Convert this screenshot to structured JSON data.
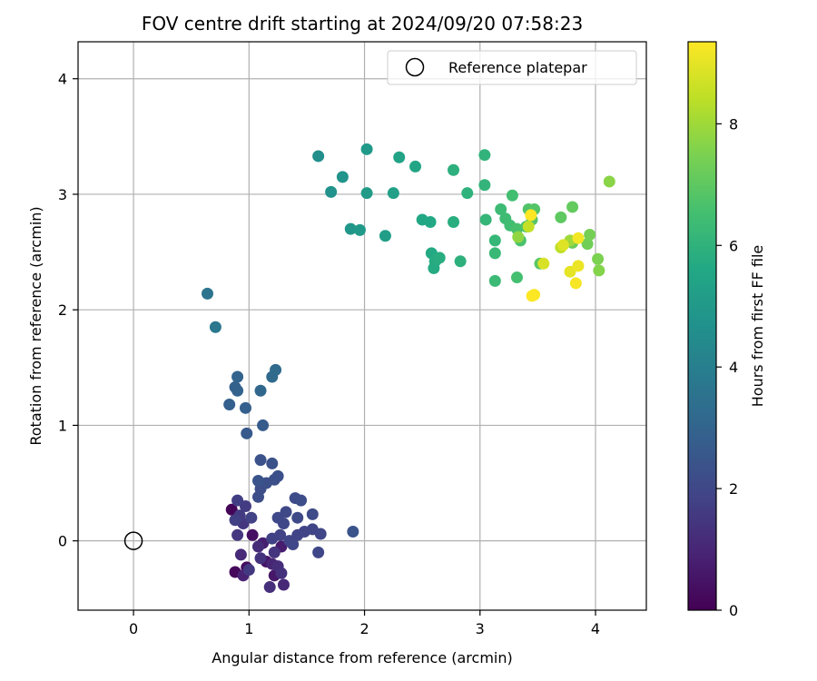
{
  "chart_data": {
    "type": "scatter",
    "title": "FOV centre drift starting at 2024/09/20 07:58:23",
    "xlabel": "Angular distance from reference (arcmin)",
    "ylabel": "Rotation from reference (arcmin)",
    "xlim": [
      -0.48,
      4.44
    ],
    "ylim": [
      -0.6,
      4.32
    ],
    "xticks": [
      0,
      1,
      2,
      3,
      4
    ],
    "yticks": [
      0,
      1,
      2,
      3,
      4
    ],
    "grid": true,
    "legend": {
      "placement": "top-right",
      "entries": [
        "Reference platepar"
      ]
    },
    "reference_point": {
      "x": 0,
      "y": 0
    },
    "colorbar": {
      "label": "Hours from first FF file",
      "range": [
        0,
        9.35
      ],
      "ticks": [
        0,
        2,
        4,
        6,
        8
      ],
      "colormap": "viridis"
    },
    "points": [
      {
        "x": 0.85,
        "y": 0.27,
        "h": 0.1
      },
      {
        "x": 0.88,
        "y": -0.27,
        "h": 0.2
      },
      {
        "x": 0.98,
        "y": -0.23,
        "h": 0.3
      },
      {
        "x": 1.03,
        "y": 0.05,
        "h": 0.4
      },
      {
        "x": 1.15,
        "y": -0.18,
        "h": 0.5
      },
      {
        "x": 1.22,
        "y": -0.3,
        "h": 0.6
      },
      {
        "x": 1.28,
        "y": -0.05,
        "h": 0.7
      },
      {
        "x": 1.12,
        "y": -0.02,
        "h": 0.8
      },
      {
        "x": 0.95,
        "y": -0.3,
        "h": 0.9
      },
      {
        "x": 1.2,
        "y": -0.2,
        "h": 1.0
      },
      {
        "x": 1.3,
        "y": -0.38,
        "h": 1.05
      },
      {
        "x": 0.93,
        "y": -0.12,
        "h": 1.1
      },
      {
        "x": 1.08,
        "y": -0.05,
        "h": 1.15
      },
      {
        "x": 1.25,
        "y": -0.22,
        "h": 1.2
      },
      {
        "x": 1.18,
        "y": -0.4,
        "h": 1.25
      },
      {
        "x": 1.28,
        "y": -0.28,
        "h": 1.3
      },
      {
        "x": 1.1,
        "y": -0.15,
        "h": 1.35
      },
      {
        "x": 1.22,
        "y": -0.1,
        "h": 1.4
      },
      {
        "x": 0.9,
        "y": 0.05,
        "h": 1.45
      },
      {
        "x": 0.95,
        "y": 0.15,
        "h": 1.5
      },
      {
        "x": 1.0,
        "y": -0.25,
        "h": 1.55
      },
      {
        "x": 0.92,
        "y": 0.22,
        "h": 1.6
      },
      {
        "x": 0.97,
        "y": 0.3,
        "h": 1.65
      },
      {
        "x": 0.9,
        "y": 0.35,
        "h": 1.7
      },
      {
        "x": 0.88,
        "y": 0.18,
        "h": 1.75
      },
      {
        "x": 1.02,
        "y": 0.2,
        "h": 1.8
      },
      {
        "x": 1.2,
        "y": 0.02,
        "h": 1.82
      },
      {
        "x": 1.27,
        "y": 0.05,
        "h": 1.84
      },
      {
        "x": 1.35,
        "y": 0.0,
        "h": 1.86
      },
      {
        "x": 1.42,
        "y": 0.05,
        "h": 1.88
      },
      {
        "x": 1.48,
        "y": 0.08,
        "h": 1.9
      },
      {
        "x": 1.55,
        "y": 0.1,
        "h": 1.92
      },
      {
        "x": 1.62,
        "y": 0.06,
        "h": 1.94
      },
      {
        "x": 1.6,
        "y": -0.1,
        "h": 1.96
      },
      {
        "x": 1.38,
        "y": -0.03,
        "h": 1.98
      },
      {
        "x": 1.3,
        "y": 0.15,
        "h": 2.0
      },
      {
        "x": 1.25,
        "y": 0.2,
        "h": 2.02
      },
      {
        "x": 1.32,
        "y": 0.25,
        "h": 2.05
      },
      {
        "x": 1.42,
        "y": 0.2,
        "h": 2.08
      },
      {
        "x": 1.55,
        "y": 0.23,
        "h": 2.1
      },
      {
        "x": 1.4,
        "y": 0.37,
        "h": 2.15
      },
      {
        "x": 1.45,
        "y": 0.35,
        "h": 2.18
      },
      {
        "x": 1.1,
        "y": 0.45,
        "h": 2.2
      },
      {
        "x": 1.08,
        "y": 0.38,
        "h": 2.22
      },
      {
        "x": 1.15,
        "y": 0.5,
        "h": 2.25
      },
      {
        "x": 1.22,
        "y": 0.53,
        "h": 2.28
      },
      {
        "x": 1.25,
        "y": 0.56,
        "h": 2.3
      },
      {
        "x": 1.2,
        "y": 0.67,
        "h": 2.33
      },
      {
        "x": 1.1,
        "y": 0.7,
        "h": 2.36
      },
      {
        "x": 1.9,
        "y": 0.08,
        "h": 2.4
      },
      {
        "x": 1.08,
        "y": 0.52,
        "h": 2.42
      },
      {
        "x": 0.98,
        "y": 0.93,
        "h": 2.6
      },
      {
        "x": 1.12,
        "y": 1.0,
        "h": 2.7
      },
      {
        "x": 0.97,
        "y": 1.15,
        "h": 2.8
      },
      {
        "x": 0.83,
        "y": 1.18,
        "h": 2.85
      },
      {
        "x": 0.88,
        "y": 1.33,
        "h": 2.9
      },
      {
        "x": 0.9,
        "y": 1.3,
        "h": 2.95
      },
      {
        "x": 0.9,
        "y": 1.42,
        "h": 3.0
      },
      {
        "x": 1.1,
        "y": 1.3,
        "h": 3.1
      },
      {
        "x": 1.2,
        "y": 1.42,
        "h": 3.2
      },
      {
        "x": 1.23,
        "y": 1.48,
        "h": 3.25
      },
      {
        "x": 0.64,
        "y": 2.14,
        "h": 3.6
      },
      {
        "x": 0.71,
        "y": 1.85,
        "h": 3.7
      },
      {
        "x": 1.6,
        "y": 3.33,
        "h": 4.6
      },
      {
        "x": 1.71,
        "y": 3.02,
        "h": 4.7
      },
      {
        "x": 1.81,
        "y": 3.15,
        "h": 4.8
      },
      {
        "x": 1.88,
        "y": 2.7,
        "h": 4.9
      },
      {
        "x": 1.96,
        "y": 2.69,
        "h": 5.0
      },
      {
        "x": 2.02,
        "y": 3.39,
        "h": 5.0
      },
      {
        "x": 2.02,
        "y": 3.01,
        "h": 5.1
      },
      {
        "x": 2.18,
        "y": 2.64,
        "h": 5.2
      },
      {
        "x": 2.25,
        "y": 3.01,
        "h": 5.3
      },
      {
        "x": 2.3,
        "y": 3.32,
        "h": 5.4
      },
      {
        "x": 2.44,
        "y": 3.24,
        "h": 5.5
      },
      {
        "x": 2.5,
        "y": 2.78,
        "h": 5.55
      },
      {
        "x": 2.57,
        "y": 2.76,
        "h": 5.6
      },
      {
        "x": 2.58,
        "y": 2.49,
        "h": 5.65
      },
      {
        "x": 2.6,
        "y": 2.36,
        "h": 5.7
      },
      {
        "x": 2.61,
        "y": 2.42,
        "h": 5.72
      },
      {
        "x": 2.62,
        "y": 2.43,
        "h": 5.75
      },
      {
        "x": 2.65,
        "y": 2.45,
        "h": 5.8
      },
      {
        "x": 2.77,
        "y": 2.76,
        "h": 5.85
      },
      {
        "x": 2.77,
        "y": 3.21,
        "h": 5.9
      },
      {
        "x": 2.83,
        "y": 2.42,
        "h": 5.95
      },
      {
        "x": 2.89,
        "y": 3.01,
        "h": 6.0
      },
      {
        "x": 3.04,
        "y": 3.34,
        "h": 6.05
      },
      {
        "x": 3.04,
        "y": 3.08,
        "h": 6.1
      },
      {
        "x": 3.05,
        "y": 2.78,
        "h": 6.15
      },
      {
        "x": 3.13,
        "y": 2.6,
        "h": 6.2
      },
      {
        "x": 3.13,
        "y": 2.49,
        "h": 6.25
      },
      {
        "x": 3.13,
        "y": 2.25,
        "h": 6.3
      },
      {
        "x": 3.18,
        "y": 2.87,
        "h": 6.35
      },
      {
        "x": 3.22,
        "y": 2.79,
        "h": 6.4
      },
      {
        "x": 3.26,
        "y": 2.73,
        "h": 6.45
      },
      {
        "x": 3.28,
        "y": 2.99,
        "h": 6.5
      },
      {
        "x": 3.32,
        "y": 2.28,
        "h": 6.55
      },
      {
        "x": 3.32,
        "y": 2.7,
        "h": 6.6
      },
      {
        "x": 3.35,
        "y": 2.6,
        "h": 6.65
      },
      {
        "x": 3.4,
        "y": 2.72,
        "h": 6.7
      },
      {
        "x": 3.42,
        "y": 2.87,
        "h": 6.75
      },
      {
        "x": 3.47,
        "y": 2.87,
        "h": 6.8
      },
      {
        "x": 3.45,
        "y": 2.78,
        "h": 6.85
      },
      {
        "x": 3.52,
        "y": 2.4,
        "h": 6.9
      },
      {
        "x": 3.7,
        "y": 2.8,
        "h": 7.0
      },
      {
        "x": 3.8,
        "y": 2.89,
        "h": 7.1
      },
      {
        "x": 3.8,
        "y": 2.58,
        "h": 7.2
      },
      {
        "x": 3.93,
        "y": 2.57,
        "h": 7.3
      },
      {
        "x": 3.95,
        "y": 2.65,
        "h": 7.4
      },
      {
        "x": 4.02,
        "y": 2.44,
        "h": 7.5
      },
      {
        "x": 4.03,
        "y": 2.34,
        "h": 7.6
      },
      {
        "x": 4.12,
        "y": 3.11,
        "h": 7.7
      },
      {
        "x": 3.33,
        "y": 2.63,
        "h": 7.8
      },
      {
        "x": 3.78,
        "y": 2.6,
        "h": 8.0
      },
      {
        "x": 3.7,
        "y": 2.54,
        "h": 8.4
      },
      {
        "x": 3.42,
        "y": 2.72,
        "h": 8.5
      },
      {
        "x": 3.55,
        "y": 2.4,
        "h": 8.8
      },
      {
        "x": 3.72,
        "y": 2.56,
        "h": 8.9
      },
      {
        "x": 3.78,
        "y": 2.33,
        "h": 9.0
      },
      {
        "x": 3.85,
        "y": 2.38,
        "h": 9.1
      },
      {
        "x": 3.85,
        "y": 2.62,
        "h": 9.2
      },
      {
        "x": 3.83,
        "y": 2.23,
        "h": 9.25
      },
      {
        "x": 3.47,
        "y": 2.13,
        "h": 9.3
      },
      {
        "x": 3.45,
        "y": 2.12,
        "h": 9.33
      },
      {
        "x": 3.44,
        "y": 2.82,
        "h": 9.35
      }
    ]
  }
}
